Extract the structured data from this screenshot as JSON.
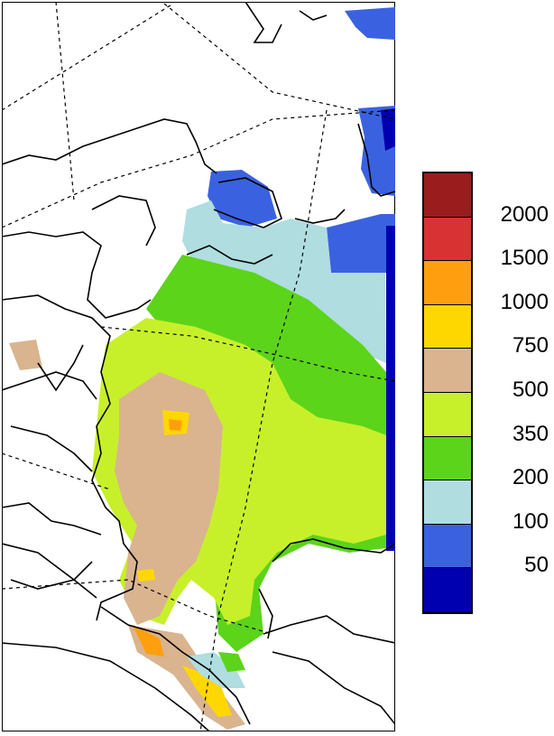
{
  "map": {
    "region": "Eastern Europe and western Russia",
    "colors": {
      "land_outline": "#000000",
      "graticule": "#000000",
      "background": "#ffffff"
    }
  },
  "legend": {
    "colors": [
      "#9b1c1c",
      "#d93232",
      "#ff9f0f",
      "#ffd700",
      "#d9b48f",
      "#c8f02a",
      "#5cd41a",
      "#b0dde0",
      "#3a62e0",
      "#0000b0"
    ],
    "labels": [
      "2000",
      "1500",
      "1000",
      "750",
      "500",
      "350",
      "200",
      "100",
      "50"
    ]
  }
}
